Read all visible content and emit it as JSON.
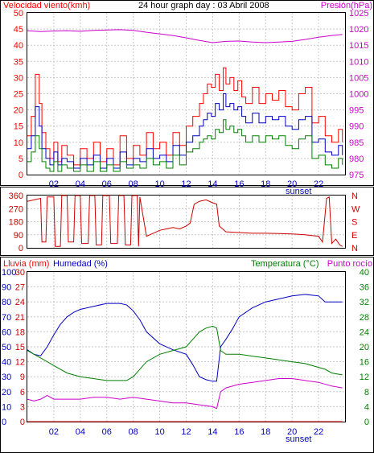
{
  "chart_data": [
    {
      "type": "line",
      "title": "24 hour graph day : 03 Abril 2008",
      "left_axis_title": "Velocidad viento(kmh)",
      "right_axis_title": "Presión(hPa)",
      "x_ticks": [
        "02",
        "04",
        "06",
        "08",
        "10",
        "12",
        "14",
        "16",
        "18",
        "20",
        "22"
      ],
      "sunset_label": "sunset",
      "ylim_left": [
        0,
        50
      ],
      "y_ticks_left": [
        0,
        5,
        10,
        15,
        20,
        25,
        30,
        35,
        40,
        45,
        50
      ],
      "ylim_right": [
        975,
        1025
      ],
      "y_ticks_right": [
        975,
        980,
        985,
        990,
        995,
        1000,
        1005,
        1010,
        1015,
        1020,
        1025
      ],
      "grid": true,
      "series": [
        {
          "color": "#ff0000",
          "axis": "left",
          "x": [
            0,
            0.3,
            0.6,
            0.9,
            1.1,
            1.4,
            1.7,
            2.0,
            2.3,
            2.6,
            3.0,
            3.5,
            4.0,
            4.5,
            5.0,
            5.5,
            6.0,
            6.5,
            7.0,
            7.5,
            8.0,
            8.5,
            9.0,
            9.5,
            10.0,
            10.5,
            11.0,
            11.5,
            12.0,
            12.5,
            13.0,
            13.3,
            13.6,
            13.9,
            14.2,
            14.5,
            14.8,
            15.0,
            15.3,
            15.6,
            15.9,
            16.2,
            16.5,
            17.0,
            17.5,
            18.0,
            18.5,
            19.0,
            19.5,
            20.0,
            20.5,
            21.0,
            21.5,
            22.0,
            22.5,
            23.0,
            23.5,
            23.8
          ],
          "values": [
            12,
            18,
            31,
            22,
            13,
            8,
            5,
            10,
            4,
            9,
            6,
            3,
            8,
            5,
            10,
            4,
            8,
            3,
            12,
            5,
            9,
            6,
            13,
            8,
            10,
            6,
            13,
            9,
            15,
            18,
            22,
            25,
            28,
            27,
            31,
            26,
            33,
            28,
            30,
            26,
            29,
            24,
            22,
            27,
            22,
            25,
            23,
            26,
            21,
            20,
            25,
            27,
            16,
            18,
            12,
            10,
            14,
            10
          ]
        },
        {
          "color": "#0000c0",
          "axis": "left",
          "x": [
            0,
            0.3,
            0.6,
            0.9,
            1.1,
            1.4,
            1.7,
            2.0,
            2.3,
            2.6,
            3.0,
            3.5,
            4.0,
            4.5,
            5.0,
            5.5,
            6.0,
            6.5,
            7.0,
            7.5,
            8.0,
            8.5,
            9.0,
            9.5,
            10.0,
            10.5,
            11.0,
            11.5,
            12.0,
            12.5,
            13.0,
            13.3,
            13.6,
            13.9,
            14.2,
            14.5,
            14.8,
            15.0,
            15.3,
            15.6,
            15.9,
            16.2,
            16.5,
            17.0,
            17.5,
            18.0,
            18.5,
            19.0,
            19.5,
            20.0,
            20.5,
            21.0,
            21.5,
            22.0,
            22.5,
            23.0,
            23.5,
            23.8
          ],
          "values": [
            8,
            12,
            21,
            15,
            8,
            5,
            3,
            7,
            3,
            5,
            4,
            2,
            5,
            3,
            6,
            2,
            5,
            2,
            7,
            3,
            5,
            4,
            8,
            5,
            6,
            4,
            9,
            6,
            10,
            12,
            15,
            17,
            19,
            18,
            22,
            20,
            25,
            21,
            22,
            20,
            21,
            18,
            16,
            19,
            16,
            18,
            17,
            18,
            15,
            14,
            17,
            18,
            10,
            11,
            7,
            6,
            9,
            6
          ]
        },
        {
          "color": "#008000",
          "axis": "left",
          "x": [
            0,
            0.3,
            0.6,
            0.9,
            1.1,
            1.4,
            1.7,
            2.0,
            2.3,
            2.6,
            3.0,
            3.5,
            4.0,
            4.5,
            5.0,
            5.5,
            6.0,
            6.5,
            7.0,
            7.5,
            8.0,
            8.5,
            9.0,
            9.5,
            10.0,
            10.5,
            11.0,
            11.5,
            12.0,
            12.5,
            13.0,
            13.3,
            13.6,
            13.9,
            14.2,
            14.5,
            14.8,
            15.0,
            15.3,
            15.6,
            15.9,
            16.2,
            16.5,
            17.0,
            17.5,
            18.0,
            18.5,
            19.0,
            19.5,
            20.0,
            20.5,
            21.0,
            21.5,
            22.0,
            22.5,
            23.0,
            23.5,
            23.8
          ],
          "values": [
            4,
            7,
            12,
            8,
            4,
            2,
            1,
            4,
            1,
            3,
            2,
            1,
            3,
            1,
            4,
            1,
            3,
            1,
            4,
            2,
            3,
            2,
            5,
            3,
            4,
            2,
            6,
            3,
            7,
            8,
            10,
            11,
            12,
            11,
            14,
            13,
            17,
            14,
            15,
            13,
            14,
            12,
            10,
            12,
            10,
            12,
            11,
            12,
            9,
            8,
            11,
            12,
            5,
            6,
            3,
            2,
            5,
            3
          ]
        },
        {
          "color": "#cc00cc",
          "axis": "right",
          "x": [
            0,
            1,
            2,
            3,
            4,
            5,
            6,
            7,
            8,
            9,
            10,
            11,
            12,
            13,
            14,
            15,
            16,
            17,
            18,
            19,
            20,
            21,
            22,
            23,
            23.8
          ],
          "values": [
            1019.5,
            1019.2,
            1019.4,
            1019.5,
            1019.3,
            1019.6,
            1019.7,
            1019.8,
            1019.6,
            1019.0,
            1018.5,
            1018.0,
            1017.3,
            1016.5,
            1015.8,
            1016.2,
            1016.3,
            1016.0,
            1015.8,
            1016.0,
            1016.2,
            1016.8,
            1017.5,
            1018.0,
            1018.3
          ]
        }
      ]
    },
    {
      "type": "line",
      "left_ticks": [
        "360",
        "270",
        "180",
        "90",
        "0"
      ],
      "right_labels": [
        "N",
        "W",
        "S",
        "E",
        "N"
      ],
      "ylim": [
        0,
        360
      ],
      "grid": true,
      "series": [
        {
          "color": "#d00000",
          "x": [
            0,
            0.5,
            1.0,
            1.1,
            1.4,
            1.5,
            2.0,
            2.1,
            2.5,
            2.6,
            3.0,
            3.1,
            3.5,
            3.6,
            4.0,
            4.1,
            4.6,
            4.7,
            5.1,
            5.2,
            5.6,
            5.7,
            6.2,
            6.3,
            6.8,
            6.9,
            7.3,
            7.4,
            7.8,
            7.9,
            8.3,
            8.4,
            8.5,
            9.0,
            9.5,
            10.0,
            10.5,
            11.0,
            11.5,
            12.0,
            12.3,
            12.6,
            13.0,
            13.5,
            14.0,
            14.3,
            14.5,
            15,
            16,
            17,
            18,
            19,
            20,
            21,
            22,
            22.3,
            22.6,
            22.8,
            23.0,
            23.3,
            23.6,
            23.8
          ],
          "values": [
            320,
            330,
            340,
            40,
            40,
            350,
            350,
            10,
            10,
            360,
            360,
            40,
            40,
            360,
            360,
            30,
            30,
            360,
            360,
            20,
            20,
            360,
            360,
            30,
            30,
            360,
            360,
            20,
            20,
            360,
            360,
            10,
            350,
            80,
            100,
            120,
            130,
            140,
            130,
            150,
            170,
            300,
            320,
            330,
            310,
            300,
            150,
            110,
            105,
            100,
            100,
            98,
            95,
            90,
            80,
            40,
            340,
            350,
            30,
            60,
            20,
            10
          ]
        }
      ]
    },
    {
      "type": "line",
      "left_axis_title_1": "Lluvia (mm)",
      "left_axis_title_2": "Humedad (%)",
      "right_axis_title_1": "Temperatura (°C)",
      "right_axis_title_2": "Punto rocío",
      "x_ticks": [
        "02",
        "04",
        "06",
        "08",
        "10",
        "12",
        "14",
        "16",
        "18",
        "20",
        "22"
      ],
      "sunset_label": "sunset",
      "humidity_ticks": [
        "100",
        "90",
        "80",
        "70",
        "60",
        "50",
        "40",
        "30",
        "20",
        "10",
        "0"
      ],
      "rain_ticks": [
        "30",
        "27",
        "24",
        "21",
        "18",
        "15",
        "12",
        "9",
        "6",
        "3",
        "0"
      ],
      "temp_ticks": [
        "40",
        "36",
        "32",
        "28",
        "24",
        "20",
        "16",
        "12",
        "8",
        "4",
        "0"
      ],
      "ylim_humidity": [
        0,
        100
      ],
      "ylim_temp": [
        0,
        40
      ],
      "grid": true,
      "series": [
        {
          "color": "#0000c0",
          "axis": "humidity",
          "x": [
            0,
            0.5,
            1.0,
            1.5,
            2.0,
            2.5,
            3.0,
            3.5,
            4.0,
            5.0,
            6.0,
            7.0,
            7.5,
            8.0,
            8.5,
            9.0,
            10.0,
            11.0,
            12.0,
            12.5,
            13.0,
            13.5,
            14.0,
            14.3,
            14.6,
            15.0,
            15.5,
            16.0,
            17.0,
            18.0,
            19.0,
            20.0,
            21.0,
            22.0,
            22.5,
            23.0,
            23.8
          ],
          "values": [
            48,
            45,
            44,
            50,
            58,
            65,
            70,
            73,
            75,
            77,
            79,
            79,
            78,
            74,
            68,
            60,
            52,
            48,
            45,
            38,
            30,
            28,
            27,
            27,
            50,
            55,
            62,
            70,
            76,
            80,
            82,
            84,
            85,
            84,
            80,
            80,
            80
          ]
        },
        {
          "color": "#008000",
          "axis": "temp",
          "x": [
            0,
            0.5,
            1.0,
            1.5,
            2.0,
            3.0,
            4.0,
            5.0,
            6.0,
            7.0,
            7.5,
            8.0,
            8.5,
            9.0,
            10.0,
            11.0,
            12.0,
            12.5,
            13.0,
            13.5,
            14.0,
            14.3,
            14.6,
            15.0,
            16.0,
            17.0,
            18.0,
            19.0,
            20.0,
            21.0,
            22.0,
            22.5,
            23.0,
            23.8
          ],
          "values": [
            19,
            18,
            17,
            16,
            15,
            13,
            12,
            11.5,
            11,
            11,
            11,
            12,
            14,
            16,
            18,
            19,
            20,
            22,
            24,
            25,
            25.5,
            25,
            19,
            18,
            18,
            17.5,
            17,
            16.5,
            16,
            15.5,
            14.5,
            14,
            13,
            12.5
          ]
        },
        {
          "color": "#cc00cc",
          "axis": "temp",
          "x": [
            0,
            0.5,
            1.0,
            1.5,
            2.0,
            3.0,
            4.0,
            5.0,
            6.0,
            7.0,
            8.0,
            9.0,
            10.0,
            11.0,
            12.0,
            13.0,
            14.0,
            14.3,
            14.6,
            15.0,
            16.0,
            17.0,
            18.0,
            19.0,
            20.0,
            21.0,
            22.0,
            23.0,
            23.8
          ],
          "values": [
            6,
            5.5,
            6,
            7,
            6,
            6,
            6,
            6.5,
            6.5,
            6,
            6.5,
            6,
            5.5,
            5,
            5,
            4.5,
            4,
            3.5,
            8,
            9,
            10,
            10.5,
            11,
            11.5,
            11.5,
            11,
            10.5,
            9.5,
            9
          ]
        },
        {
          "color": "#d00000",
          "axis": "rain",
          "x": [
            0,
            23.8
          ],
          "values": [
            0,
            0
          ]
        }
      ]
    }
  ]
}
